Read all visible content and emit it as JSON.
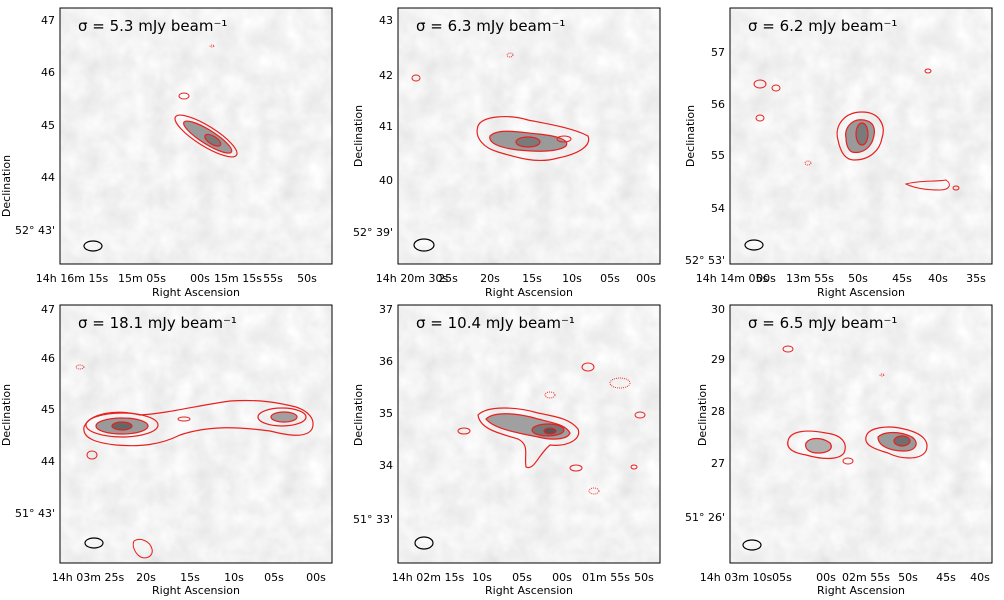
{
  "figure": {
    "xlabel": "Right Ascension",
    "ylabel": "Declination",
    "contour_color": "#e8201e"
  },
  "chart_data": [
    {
      "type": "heatmap",
      "title": "σ = 5.3 mJy beam⁻¹",
      "sigma": "5.3",
      "xlabel": "Right Ascension",
      "ylabel": "Declination",
      "x_ticks": [
        "14h 16m 15s",
        "15m 05s",
        "00s",
        "15m 15s",
        "55s",
        "50s"
      ],
      "y_ticks": [
        "52° 43'",
        "44",
        "45",
        "46",
        "47"
      ],
      "y_lead": "52° 43'",
      "x_lead": "14h 16m 15s",
      "sources": [
        {
          "ra_frac": 0.41,
          "dec_frac": 0.49,
          "peak": 1.0
        }
      ],
      "contour_levels_sigma": [
        3,
        6,
        12,
        24
      ],
      "grid": false
    },
    {
      "type": "heatmap",
      "title": "σ = 6.3 mJy beam⁻¹",
      "sigma": "6.3",
      "xlabel": "Right Ascension",
      "ylabel": "Declination",
      "x_ticks": [
        "14h 20m 30s",
        "25s",
        "20s",
        "15s",
        "10s",
        "05s",
        "00s"
      ],
      "y_ticks": [
        "52° 39'",
        "40",
        "41",
        "42",
        "43"
      ],
      "y_lead": "52° 39'",
      "x_lead": "14h 20m 30s",
      "sources": [
        {
          "ra_frac": 0.48,
          "dec_frac": 0.5,
          "peak": 1.0
        }
      ],
      "contour_levels_sigma": [
        3,
        6,
        12,
        24
      ],
      "grid": false
    },
    {
      "type": "heatmap",
      "title": "σ = 6.2 mJy beam⁻¹",
      "sigma": "6.2",
      "xlabel": "Right Ascension",
      "ylabel": "Declination",
      "x_ticks": [
        "14h 14m 05s",
        "00s",
        "13m 55s",
        "50s",
        "45s",
        "40s",
        "35s"
      ],
      "y_ticks": [
        "52° 53'",
        "54",
        "55",
        "56",
        "57"
      ],
      "y_lead": "52° 53'",
      "x_lead": "14h 14m 05s",
      "sources": [
        {
          "ra_frac": 0.56,
          "dec_frac": 0.45,
          "peak": 1.0
        }
      ],
      "contour_levels_sigma": [
        3,
        6,
        12,
        24
      ],
      "grid": false
    },
    {
      "type": "heatmap",
      "title": "σ = 18.1 mJy beam⁻¹",
      "sigma": "18.1",
      "xlabel": "Right Ascension",
      "ylabel": "Declination",
      "x_ticks": [
        "14h 03m 25s",
        "20s",
        "15s",
        "10s",
        "05s",
        "00s"
      ],
      "y_ticks": [
        "51° 43'",
        "44",
        "45",
        "46",
        "47"
      ],
      "y_lead": "51° 43'",
      "x_lead": "14h 03m 25s",
      "sources": [
        {
          "ra_frac": 0.2,
          "dec_frac": 0.5,
          "peak": 1.0
        },
        {
          "ra_frac": 0.8,
          "dec_frac": 0.53,
          "peak": 0.6
        }
      ],
      "contour_levels_sigma": [
        3,
        6,
        12,
        24
      ],
      "grid": false
    },
    {
      "type": "heatmap",
      "title": "σ = 10.4 mJy beam⁻¹",
      "sigma": "10.4",
      "xlabel": "Right Ascension",
      "ylabel": "Declination",
      "x_ticks": [
        "14h 02m 15s",
        "10s",
        "05s",
        "00s",
        "01m 55s",
        "50s"
      ],
      "y_ticks": [
        "51° 33'",
        "34",
        "35",
        "36",
        "37"
      ],
      "y_lead": "51° 33'",
      "x_lead": "14h 02m 15s",
      "sources": [
        {
          "ra_frac": 0.55,
          "dec_frac": 0.47,
          "peak": 1.0
        }
      ],
      "contour_levels_sigma": [
        3,
        6,
        12,
        24
      ],
      "grid": false
    },
    {
      "type": "heatmap",
      "title": "σ = 6.5 mJy beam⁻¹",
      "sigma": "6.5",
      "xlabel": "Right Ascension",
      "ylabel": "Declination",
      "x_ticks": [
        "14h 03m 10s",
        "05s",
        "00s",
        "02m 55s",
        "50s",
        "45s",
        "40s"
      ],
      "y_ticks": [
        "51° 26'",
        "27",
        "28",
        "29",
        "30"
      ],
      "y_lead": "51° 26'",
      "x_lead": "14h 03m 10s",
      "sources": [
        {
          "ra_frac": 0.35,
          "dec_frac": 0.52,
          "peak": 0.6
        },
        {
          "ra_frac": 0.72,
          "dec_frac": 0.5,
          "peak": 1.0
        }
      ],
      "contour_levels_sigma": [
        3,
        6,
        12,
        24
      ],
      "grid": false
    }
  ]
}
